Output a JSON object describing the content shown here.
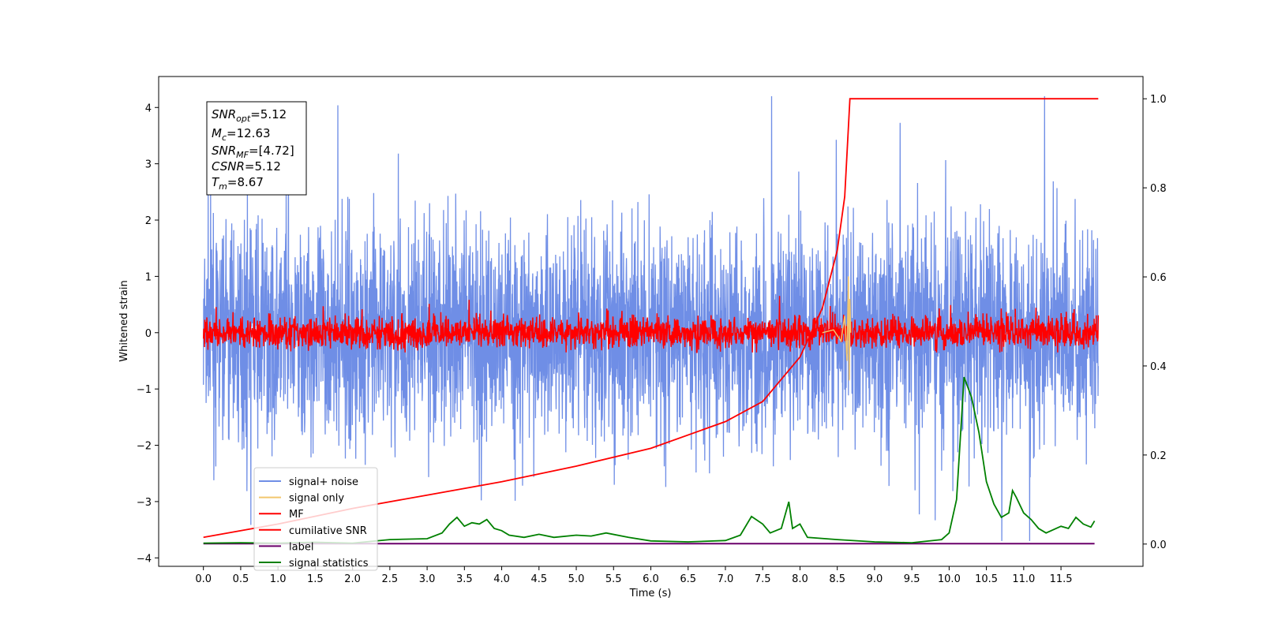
{
  "chart_data": {
    "type": "line",
    "xlabel": "Time (s)",
    "ylabel": "Whitened strain",
    "xlim": [
      -0.6,
      12.6
    ],
    "ylim": [
      -4.15,
      4.55
    ],
    "y2lim": [
      -0.05,
      1.05
    ],
    "x_ticks": [
      "0.0",
      "0.5",
      "1.0",
      "1.5",
      "2.0",
      "2.5",
      "3.0",
      "3.5",
      "4.0",
      "4.5",
      "5.0",
      "5.5",
      "6.0",
      "6.5",
      "7.0",
      "7.5",
      "8.0",
      "8.5",
      "9.0",
      "9.5",
      "10.0",
      "10.5",
      "11.0",
      "11.5"
    ],
    "y_ticks": [
      "4",
      "3",
      "2",
      "1",
      "0",
      "−1",
      "−2",
      "−3",
      "−4"
    ],
    "y2_ticks": [
      "1.0",
      "0.8",
      "0.6",
      "0.4",
      "0.2",
      "0.0"
    ],
    "duration": 12.0,
    "annotation": {
      "snr_opt": {
        "symbol": "SNR",
        "sub": "opt",
        "value": "=5.12"
      },
      "mc": {
        "symbol": "M",
        "sub": "c",
        "value": "=12.63"
      },
      "snr_mf": {
        "symbol": "SNR",
        "sub": "MF",
        "value": "=[4.72]"
      },
      "csnr": {
        "symbol": "CSNR",
        "sub": "",
        "value": "=5.12"
      },
      "tm": {
        "symbol": "T",
        "sub": "m",
        "value": "=8.67"
      }
    },
    "legend": {
      "position": "lower-left",
      "entries": [
        {
          "label": "signal+ noise",
          "color": "#6f8ee6"
        },
        {
          "label": "signal only",
          "color": "#f2c66d"
        },
        {
          "label": "MF",
          "color": "#ff0000"
        },
        {
          "label": "cumilative SNR",
          "color": "#ff0000"
        },
        {
          "label": "label",
          "color": "#6a006a"
        },
        {
          "label": "signal statistics",
          "color": "#008000"
        }
      ]
    },
    "series": [
      {
        "name": "signal+ noise",
        "axis": "left",
        "color": "#6f8ee6",
        "description": "dense noise, approx. range -3.7 to 4.2"
      },
      {
        "name": "signal only",
        "axis": "left",
        "color": "#f2c66d",
        "points": [
          [
            8.3,
            0
          ],
          [
            8.45,
            0.05
          ],
          [
            8.55,
            -0.15
          ],
          [
            8.6,
            0.3
          ],
          [
            8.63,
            -0.5
          ],
          [
            8.65,
            1.0
          ],
          [
            8.66,
            -0.85
          ],
          [
            8.67,
            0.6
          ],
          [
            8.68,
            0
          ]
        ]
      },
      {
        "name": "MF",
        "axis": "left",
        "color": "#ff0000",
        "description": "dense noise, approx. range -0.35 to 1.0"
      },
      {
        "name": "cumilative SNR",
        "axis": "right",
        "color": "#ff0000",
        "points": [
          [
            0,
            0.015
          ],
          [
            1,
            0.045
          ],
          [
            2,
            0.08
          ],
          [
            3,
            0.11
          ],
          [
            4,
            0.14
          ],
          [
            5,
            0.175
          ],
          [
            6,
            0.215
          ],
          [
            7,
            0.275
          ],
          [
            7.5,
            0.32
          ],
          [
            8,
            0.42
          ],
          [
            8.3,
            0.53
          ],
          [
            8.5,
            0.66
          ],
          [
            8.6,
            0.78
          ],
          [
            8.67,
            1.0
          ],
          [
            12,
            1.0
          ]
        ]
      },
      {
        "name": "label",
        "axis": "right",
        "color": "#6a006a",
        "points": [
          [
            0,
            0.001
          ],
          [
            11.95,
            0.001
          ]
        ]
      },
      {
        "name": "signal statistics",
        "axis": "right",
        "color": "#008000",
        "points": [
          [
            0,
            0.002
          ],
          [
            0.5,
            0.003
          ],
          [
            1,
            0.002
          ],
          [
            1.5,
            0.004
          ],
          [
            2,
            0.002
          ],
          [
            2.5,
            0.01
          ],
          [
            3,
            0.012
          ],
          [
            3.2,
            0.025
          ],
          [
            3.3,
            0.045
          ],
          [
            3.4,
            0.06
          ],
          [
            3.5,
            0.04
          ],
          [
            3.6,
            0.048
          ],
          [
            3.7,
            0.045
          ],
          [
            3.8,
            0.055
          ],
          [
            3.9,
            0.035
          ],
          [
            4.0,
            0.03
          ],
          [
            4.1,
            0.02
          ],
          [
            4.3,
            0.015
          ],
          [
            4.5,
            0.022
          ],
          [
            4.7,
            0.015
          ],
          [
            5.0,
            0.02
          ],
          [
            5.2,
            0.018
          ],
          [
            5.4,
            0.025
          ],
          [
            5.7,
            0.015
          ],
          [
            6.0,
            0.007
          ],
          [
            6.5,
            0.005
          ],
          [
            7.0,
            0.008
          ],
          [
            7.2,
            0.02
          ],
          [
            7.35,
            0.062
          ],
          [
            7.5,
            0.045
          ],
          [
            7.6,
            0.025
          ],
          [
            7.75,
            0.035
          ],
          [
            7.85,
            0.095
          ],
          [
            7.9,
            0.035
          ],
          [
            8.0,
            0.045
          ],
          [
            8.1,
            0.015
          ],
          [
            8.5,
            0.01
          ],
          [
            9.0,
            0.005
          ],
          [
            9.5,
            0.003
          ],
          [
            9.9,
            0.01
          ],
          [
            10.0,
            0.025
          ],
          [
            10.1,
            0.1
          ],
          [
            10.2,
            0.375
          ],
          [
            10.3,
            0.33
          ],
          [
            10.4,
            0.25
          ],
          [
            10.5,
            0.14
          ],
          [
            10.6,
            0.09
          ],
          [
            10.7,
            0.06
          ],
          [
            10.8,
            0.07
          ],
          [
            10.85,
            0.12
          ],
          [
            10.9,
            0.105
          ],
          [
            11.0,
            0.07
          ],
          [
            11.1,
            0.055
          ],
          [
            11.2,
            0.035
          ],
          [
            11.3,
            0.025
          ],
          [
            11.5,
            0.04
          ],
          [
            11.6,
            0.035
          ],
          [
            11.7,
            0.06
          ],
          [
            11.8,
            0.045
          ],
          [
            11.9,
            0.038
          ],
          [
            11.95,
            0.052
          ]
        ]
      }
    ]
  }
}
